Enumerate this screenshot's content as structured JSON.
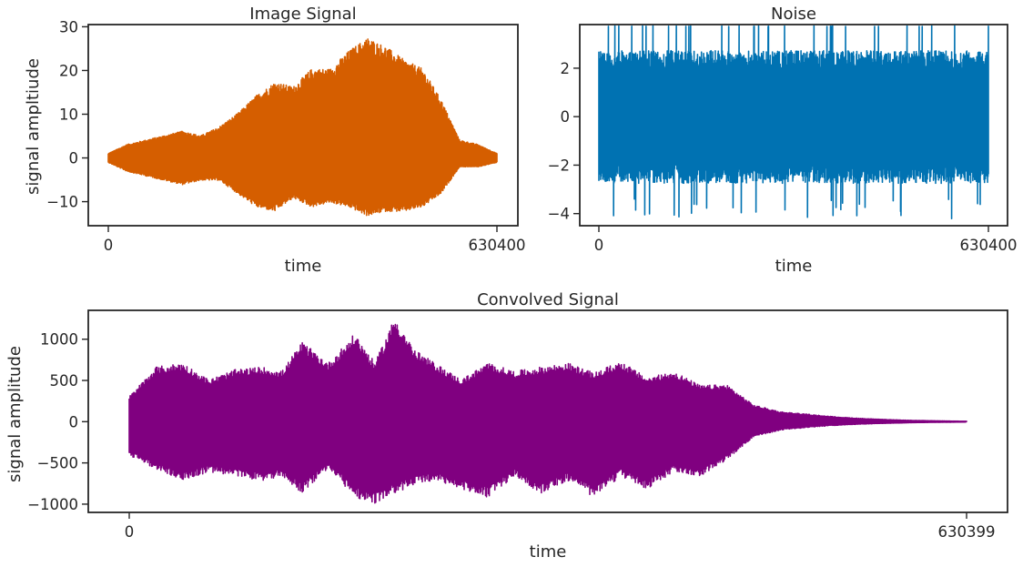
{
  "chart_data": [
    {
      "id": "image_signal",
      "type": "line",
      "title": "Image Signal",
      "xlabel": "time",
      "ylabel": "signal ampltiude",
      "xlim": [
        0,
        630400
      ],
      "ylim": [
        -15.5,
        30.5
      ],
      "x_ticks": [
        0,
        630400
      ],
      "x_tick_labels": [
        "0",
        "630400"
      ],
      "y_ticks": [
        -10,
        0,
        10,
        20,
        30
      ],
      "y_tick_labels": [
        "−10",
        "0",
        "10",
        "20",
        "30"
      ],
      "color": "#d55e00",
      "series": [
        {
          "x": [
            0,
            30000,
            60000,
            90000,
            120000,
            150000,
            180000,
            210000,
            240000,
            270000,
            300000,
            330000,
            360000,
            390000,
            420000,
            450000,
            480000,
            510000,
            540000,
            570000,
            600000,
            630400
          ],
          "upper": [
            1,
            3,
            4,
            5,
            6,
            5,
            7,
            10,
            14,
            17,
            16,
            20,
            20,
            24,
            27,
            25,
            22,
            20,
            13,
            4,
            3,
            1
          ],
          "lower": [
            -1,
            -3,
            -4,
            -5,
            -6,
            -5,
            -5,
            -8,
            -11,
            -12,
            -9,
            -11,
            -10,
            -11,
            -13,
            -12,
            -12,
            -11,
            -8,
            -2,
            -2,
            -1
          ]
        }
      ],
      "grid": false
    },
    {
      "id": "noise",
      "type": "line",
      "title": "Noise",
      "xlabel": "time",
      "ylabel": "",
      "xlim": [
        0,
        630400
      ],
      "ylim": [
        -4.5,
        3.8
      ],
      "x_ticks": [
        0,
        630400
      ],
      "x_tick_labels": [
        "0",
        "630400"
      ],
      "y_ticks": [
        -4,
        -2,
        0,
        2
      ],
      "y_tick_labels": [
        "−4",
        "−2",
        "0",
        "2"
      ],
      "color": "#0072b2",
      "series": [
        {
          "x": [
            0,
            630400
          ],
          "upper": [
            2.5,
            2.5
          ],
          "lower": [
            -2.5,
            -2.5
          ],
          "max": 3.5,
          "min": -4
        }
      ],
      "grid": false
    },
    {
      "id": "convolved_signal",
      "type": "line",
      "title": "Convolved Signal",
      "xlabel": "time",
      "ylabel": "signal amplitude",
      "xlim": [
        0,
        630399
      ],
      "ylim": [
        -1100,
        1350
      ],
      "x_ticks": [
        0,
        630399
      ],
      "x_tick_labels": [
        "0",
        "630399"
      ],
      "y_ticks": [
        -1000,
        -500,
        0,
        500,
        1000
      ],
      "y_tick_labels": [
        "−1000",
        "−500",
        "0",
        "500",
        "1000"
      ],
      "color": "#800080",
      "series": [
        {
          "x": [
            0,
            20000,
            40000,
            60000,
            80000,
            100000,
            115000,
            130000,
            150000,
            170000,
            185000,
            200000,
            215000,
            230000,
            250000,
            270000,
            290000,
            310000,
            330000,
            350000,
            370000,
            390000,
            410000,
            430000,
            450000,
            470000,
            490000,
            510000,
            530000,
            550000,
            570000,
            590000,
            610000,
            630399
          ],
          "upper": [
            300,
            650,
            700,
            500,
            620,
            650,
            600,
            950,
            700,
            1050,
            700,
            1250,
            850,
            700,
            500,
            700,
            600,
            650,
            700,
            580,
            720,
            520,
            600,
            430,
            440,
            200,
            120,
            90,
            60,
            40,
            25,
            15,
            10,
            5
          ],
          "lower": [
            -400,
            -560,
            -700,
            -600,
            -650,
            -700,
            -650,
            -850,
            -550,
            -900,
            -980,
            -850,
            -750,
            -700,
            -800,
            -900,
            -650,
            -850,
            -700,
            -900,
            -650,
            -800,
            -600,
            -650,
            -450,
            -180,
            -100,
            -70,
            -45,
            -30,
            -20,
            -12,
            -8,
            -5
          ]
        }
      ],
      "grid": false
    }
  ]
}
